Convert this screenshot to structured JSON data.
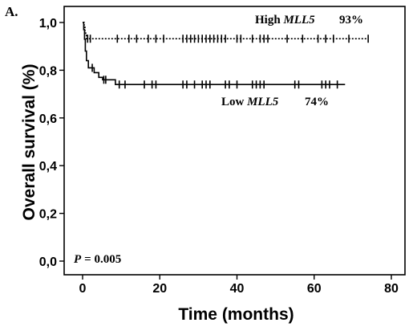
{
  "panel_label": "A.",
  "chart_data": {
    "type": "line",
    "subtype": "kaplan-meier",
    "title": "",
    "xlabel": "Time (months)",
    "ylabel": "Overall survival (%)",
    "xlim": [
      0,
      80
    ],
    "ylim": [
      0.0,
      1.0
    ],
    "xticks": [
      "0",
      "20",
      "40",
      "60",
      "80"
    ],
    "yticks": [
      "0,0",
      "0,2",
      "0,4",
      "0,6",
      "0,8",
      "1,0"
    ],
    "grid": false,
    "p_value": {
      "symbol": "P",
      "text": "= 0.005"
    },
    "series": [
      {
        "name_prefix": "High ",
        "name_gene": "MLL5",
        "final_survival": "93%",
        "line_style": "dotted",
        "color": "#000000",
        "steps": [
          [
            0,
            1.0
          ],
          [
            0.4,
            0.985
          ],
          [
            0.6,
            0.965
          ],
          [
            0.8,
            0.95
          ],
          [
            1.0,
            0.932
          ],
          [
            74,
            0.932
          ]
        ],
        "censored": [
          1.3,
          2,
          9,
          12,
          14,
          17,
          19,
          21,
          26,
          27,
          28,
          29,
          30,
          31,
          32,
          33,
          34,
          35,
          36,
          37,
          40,
          41,
          44,
          46,
          47,
          48,
          53,
          57,
          61,
          63,
          65,
          69,
          74
        ]
      },
      {
        "name_prefix": "Low ",
        "name_gene": "MLL5",
        "final_survival": "74%",
        "line_style": "solid",
        "color": "#000000",
        "steps": [
          [
            0,
            1.0
          ],
          [
            0.3,
            0.97
          ],
          [
            0.5,
            0.93
          ],
          [
            0.7,
            0.88
          ],
          [
            1.0,
            0.84
          ],
          [
            1.5,
            0.81
          ],
          [
            3,
            0.79
          ],
          [
            4.2,
            0.77
          ],
          [
            5.2,
            0.76
          ],
          [
            8.5,
            0.74
          ],
          [
            68,
            0.74
          ]
        ],
        "censored": [
          2.5,
          5.5,
          6,
          9.5,
          11,
          16,
          18,
          19,
          26,
          27,
          29,
          31,
          32,
          33,
          37,
          38,
          40,
          44,
          45,
          46,
          47,
          55,
          56,
          62,
          63,
          64,
          66
        ]
      }
    ]
  }
}
